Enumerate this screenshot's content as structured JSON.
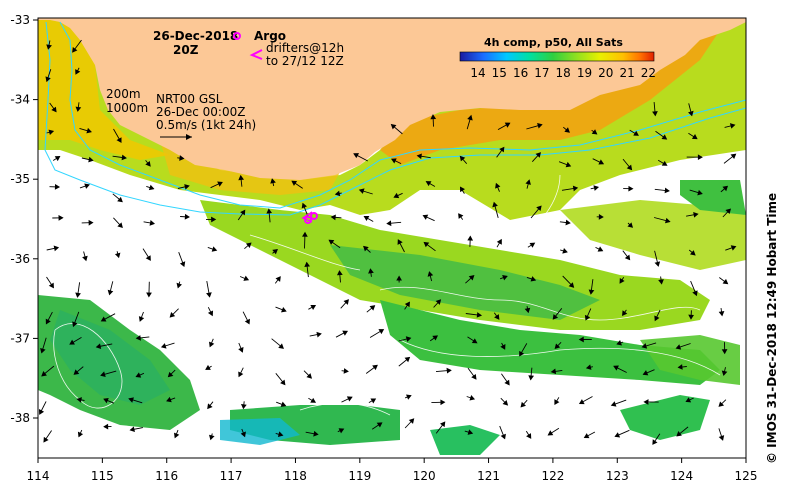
{
  "header": {
    "date": "26-Dec-2018",
    "time": "20Z"
  },
  "legend": {
    "argo": "Argo",
    "drifters_line1": "drifters@12h",
    "drifters_line2": "to 27/12 12Z",
    "argo_color": "#ff00ff",
    "drifter_color": "#ff00ff"
  },
  "isobaths": {
    "shallow": "200m",
    "deep": "1000m",
    "color": "#33d6ff"
  },
  "product": {
    "line1": "NRT00 GSL",
    "line2": "26-Dec 00:00Z",
    "line3": "0.5m/s (1kt 24h)"
  },
  "colorbar": {
    "title": "4h comp, p50, All Sats",
    "ticks": [
      "14",
      "15",
      "16",
      "17",
      "18",
      "19",
      "20",
      "21",
      "22"
    ],
    "colors": [
      "#1a1aa0",
      "#1a6cff",
      "#00c8ff",
      "#00e0a0",
      "#30d040",
      "#90e020",
      "#e8f000",
      "#ffc000",
      "#ff7000",
      "#e02000"
    ]
  },
  "axes": {
    "x_ticks": [
      "114",
      "115",
      "116",
      "117",
      "118",
      "119",
      "120",
      "121",
      "122",
      "123",
      "124",
      "125"
    ],
    "y_ticks": [
      "-33",
      "-34",
      "-35",
      "-36",
      "-37",
      "-38"
    ]
  },
  "credit": "© IMOS 31-Dec-2018 12:49 Hobart Time",
  "colors": {
    "land": "#fcc896",
    "sea_blank": "#ffffff"
  }
}
